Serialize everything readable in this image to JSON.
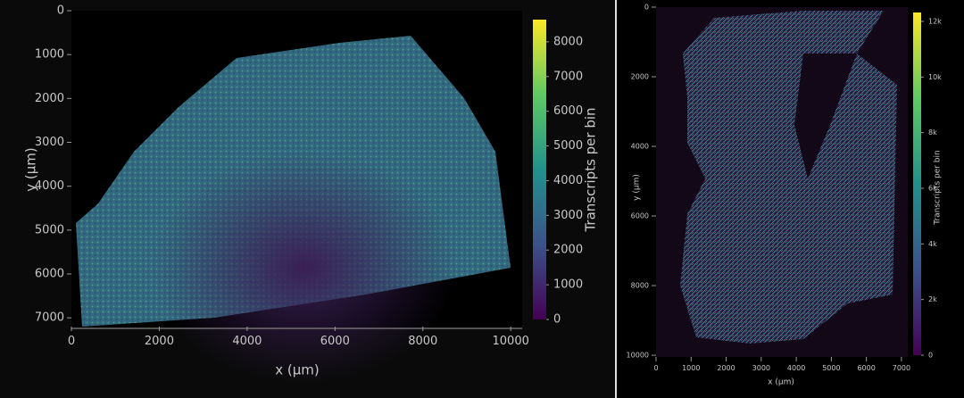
{
  "chart_data": [
    {
      "type": "heatmap",
      "x_label": "x (µm)",
      "y_label": "y (µm)",
      "colorbar_label": "Transcripts per bin",
      "xlim": [
        0,
        10260
      ],
      "xticks": [
        0,
        2000,
        4000,
        6000,
        8000,
        10000
      ],
      "ylim": [
        0,
        7200
      ],
      "yticks": [
        0,
        1000,
        2000,
        3000,
        4000,
        5000,
        6000,
        7000
      ],
      "y_reversed": true,
      "clim": [
        0,
        8640
      ],
      "cticks": [
        0,
        1000,
        2000,
        3000,
        4000,
        5000,
        6000,
        7000,
        8000
      ],
      "colorscale": [
        "#440154",
        "#3b528b",
        "#21918c",
        "#5ec962",
        "#fde725"
      ]
    },
    {
      "type": "heatmap",
      "x_label": "x (µm)",
      "y_label": "y (µm)",
      "colorbar_label": "Transcripts per bin",
      "xlim": [
        0,
        7180
      ],
      "xticks": [
        0,
        1000,
        2000,
        3000,
        4000,
        5000,
        6000,
        7000
      ],
      "ylim": [
        0,
        10050
      ],
      "yticks": [
        0,
        2000,
        4000,
        6000,
        8000,
        10000
      ],
      "y_reversed": true,
      "clim": [
        0,
        12320
      ],
      "cticks": [
        0,
        {
          "value": 2000,
          "label": "2k"
        },
        {
          "value": 4000,
          "label": "4k"
        },
        {
          "value": 6000,
          "label": "6k"
        },
        {
          "value": 8000,
          "label": "8k"
        },
        {
          "value": 10000,
          "label": "10k"
        },
        {
          "value": 12000,
          "label": "12k"
        }
      ],
      "colorscale": [
        "#440154",
        "#3b528b",
        "#21918c",
        "#5ec962",
        "#fde725"
      ]
    }
  ]
}
